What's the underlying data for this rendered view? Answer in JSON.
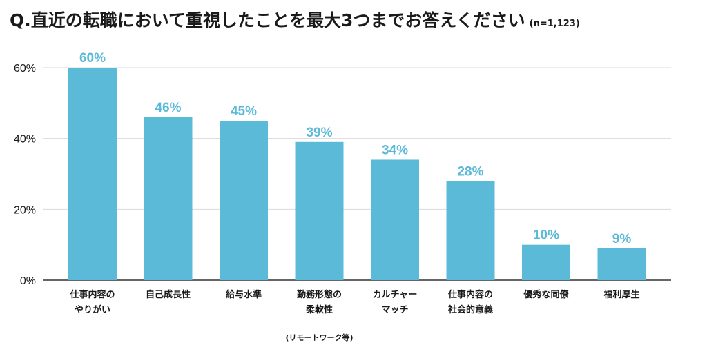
{
  "title": "Q.直近の転職において重視したことを最大3つまでお答えください",
  "note": "(n=1,123)",
  "colors": {
    "bar": "#5bbad8",
    "label": "#5bbad8",
    "grid": "#d9d9d9",
    "axis": "#333333"
  },
  "chart_data": {
    "type": "bar",
    "categories": [
      [
        "仕事内容の",
        "やりがい"
      ],
      [
        "自己成長性"
      ],
      [
        "給与水準"
      ],
      [
        "勤務形態の",
        "柔軟性"
      ],
      [
        "カルチャー",
        "マッチ"
      ],
      [
        "仕事内容の",
        "社会的意義"
      ],
      [
        "優秀な同僚"
      ],
      [
        "福利厚生"
      ]
    ],
    "category_notes": [
      "",
      "",
      "",
      "(リモートワーク等)",
      "",
      "",
      "",
      ""
    ],
    "values": [
      60,
      46,
      45,
      39,
      34,
      28,
      10,
      9
    ],
    "value_labels": [
      "60%",
      "46%",
      "45%",
      "39%",
      "34%",
      "28%",
      "10%",
      "9%"
    ],
    "yticks": [
      0,
      20,
      40,
      60
    ],
    "ytick_labels": [
      "0%",
      "20%",
      "40%",
      "60%"
    ],
    "ylim": [
      0,
      60
    ],
    "grid": true
  }
}
